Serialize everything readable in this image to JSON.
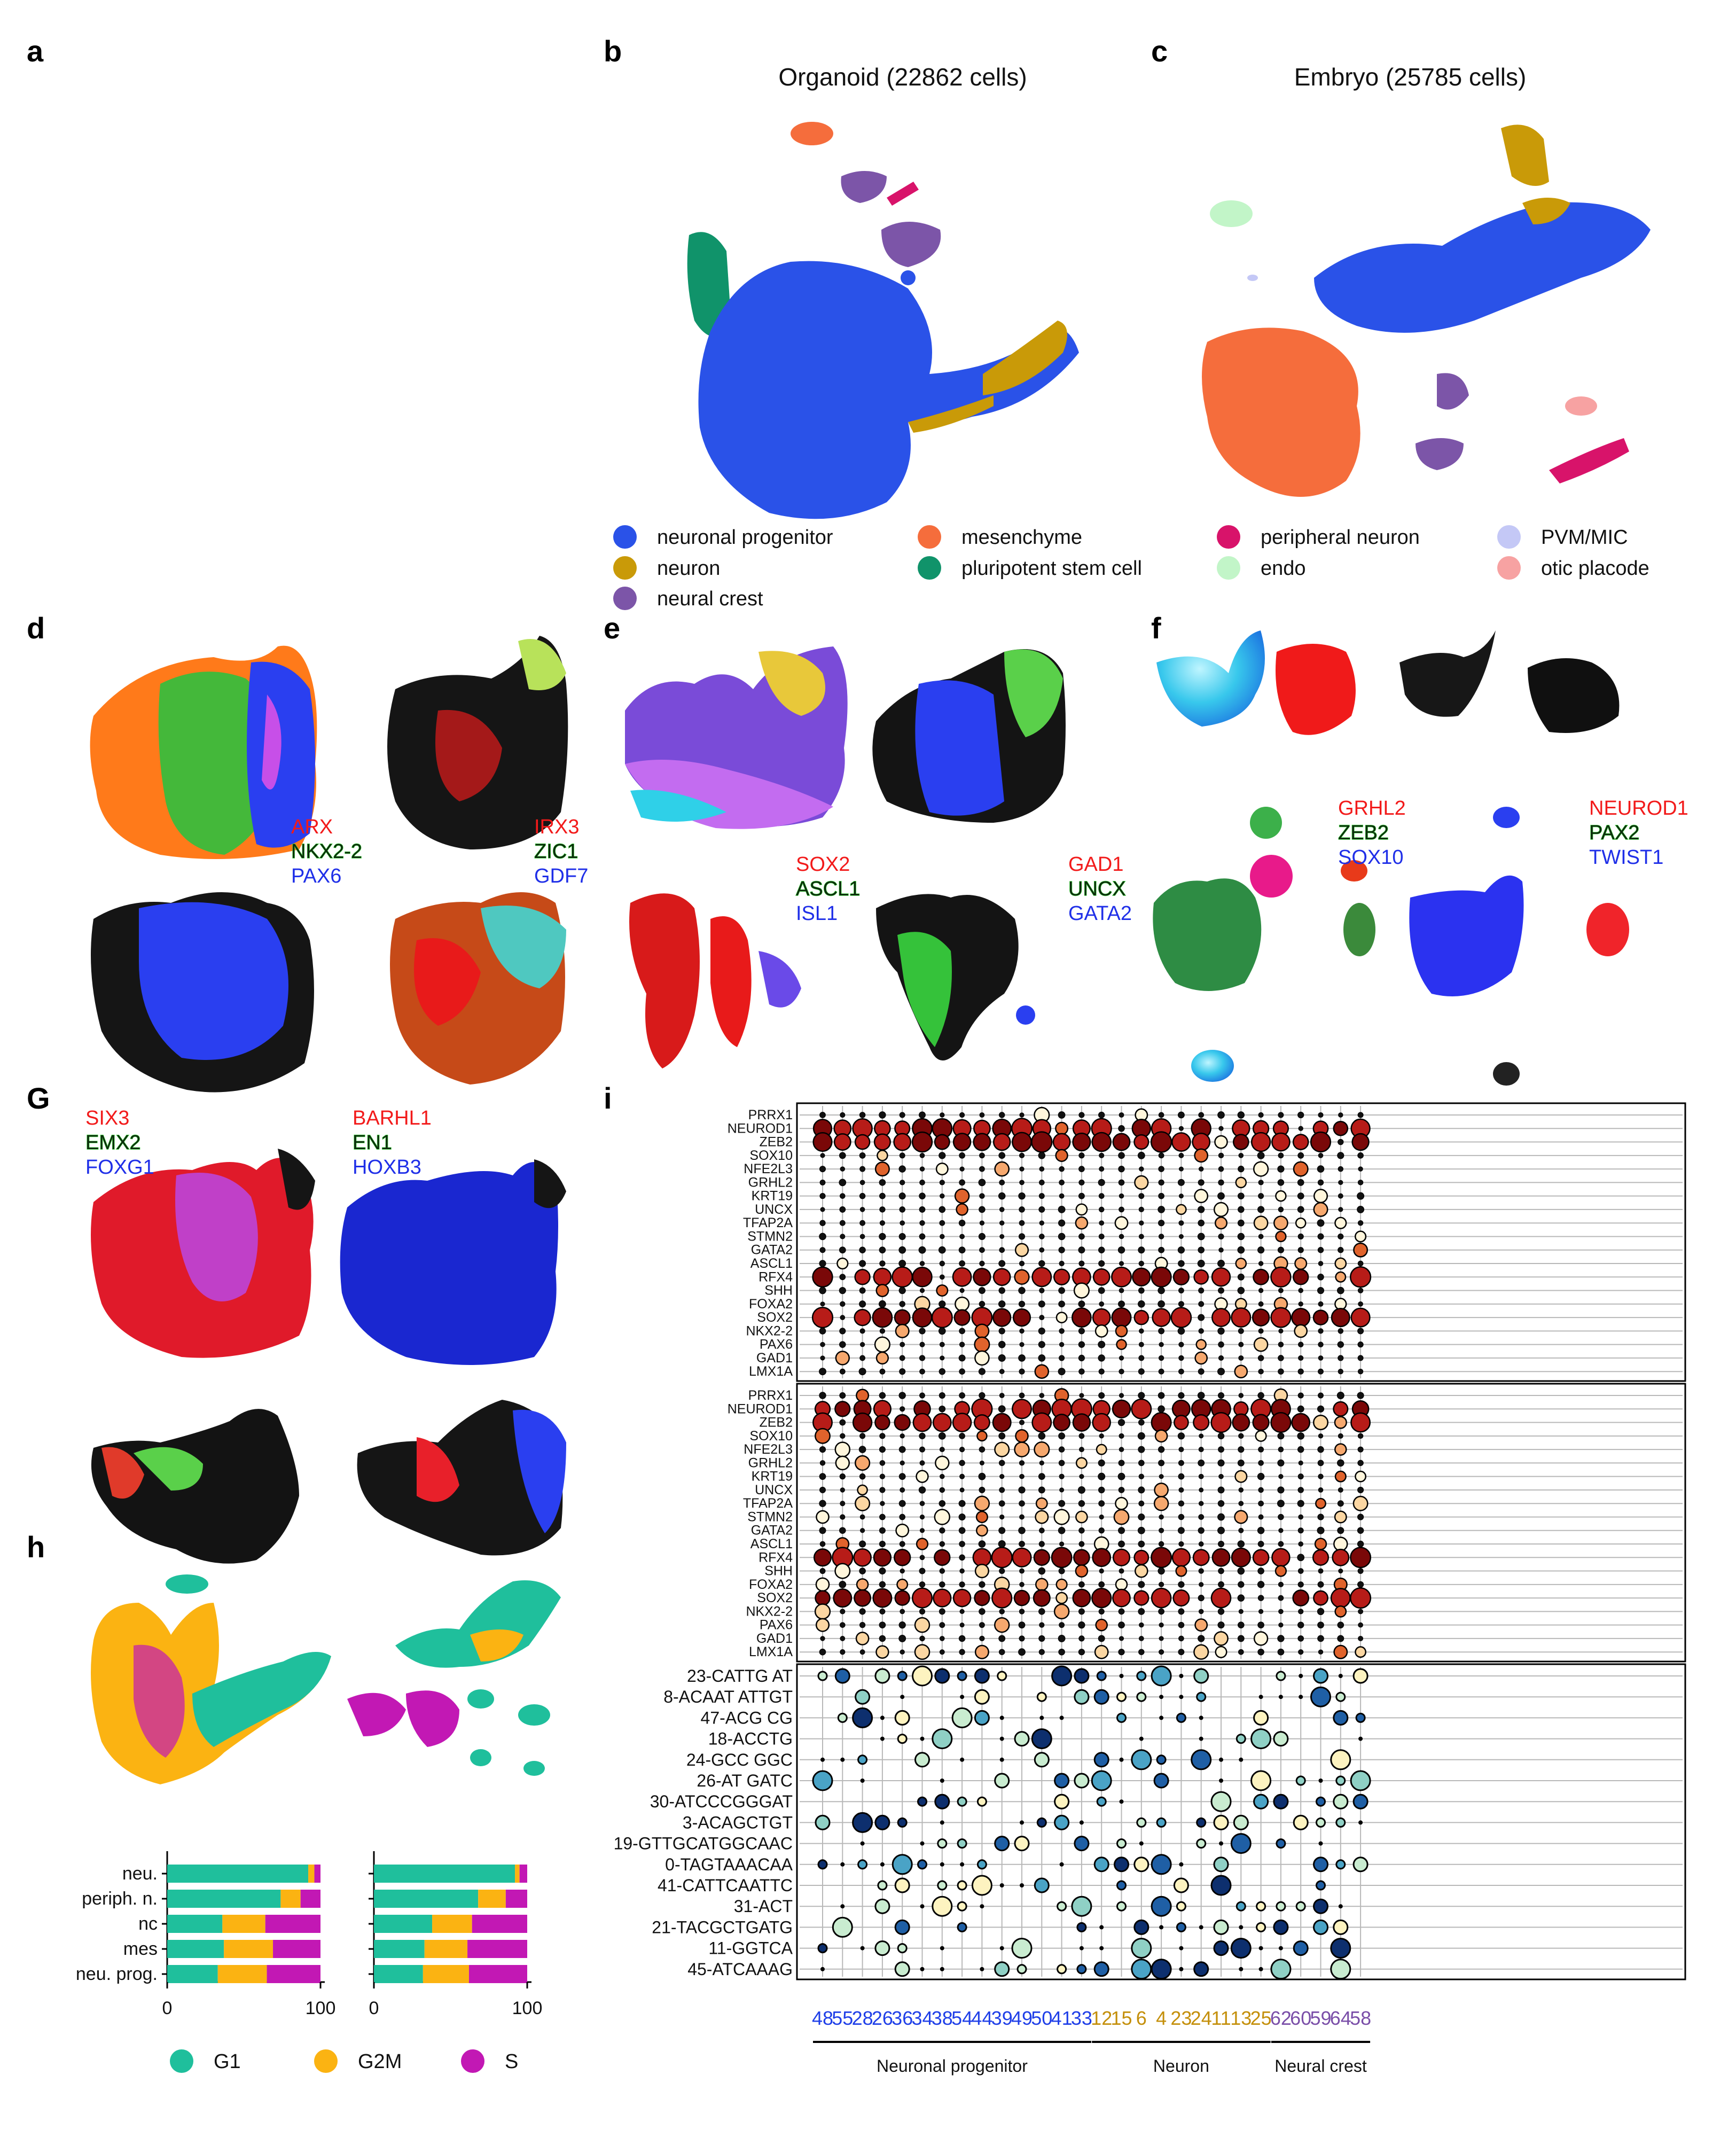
{
  "panels": {
    "a": "a",
    "b": "b",
    "c": "c",
    "d": "d",
    "e": "e",
    "f": "f",
    "g": "G",
    "h": "h",
    "i": "i"
  },
  "titles": {
    "organoid": "Organoid (22862 cells)",
    "embryo": "Embryo (25785 cells)"
  },
  "legend": [
    {
      "label": "neuronal progenitor",
      "color": "#2a52e8"
    },
    {
      "label": "neuron",
      "color": "#c99a08"
    },
    {
      "label": "neural crest",
      "color": "#7c55a8"
    },
    {
      "label": "mesenchyme",
      "color": "#f56d3c"
    },
    {
      "label": "pluripotent stem cell",
      "color": "#10936a"
    },
    {
      "label": "peripheral neuron",
      "color": "#d8136a"
    },
    {
      "label": "endo",
      "color": "#c2f5c8"
    },
    {
      "label": "PVM/MIC",
      "color": "#c4c8f6"
    },
    {
      "label": "otic placode",
      "color": "#f7a2a2"
    }
  ],
  "gene_triplets": {
    "d1": [
      "ARX",
      "NKX2-2",
      "PAX6"
    ],
    "d2": [
      "IRX3",
      "ZIC1",
      "GDF7"
    ],
    "e1": [
      "SOX2",
      "ASCL1",
      "ISL1"
    ],
    "e2": [
      "GAD1",
      "UNCX",
      "GATA2"
    ],
    "f1": [
      "GRHL2",
      "ZEB2",
      "SOX10"
    ],
    "f2": [
      "NEUROD1",
      "PAX2",
      "TWIST1"
    ],
    "g1": [
      "SIX3",
      "EMX2",
      "FOXG1"
    ],
    "g2": [
      "BARHL1",
      "EN1",
      "HOXB3"
    ]
  },
  "colors": {
    "red": "#f21a1a",
    "green_text": "#0e2a0e",
    "blue": "#1f2fe8",
    "dot_outline": "#222222"
  },
  "cell_cycle": {
    "categories": [
      "neu.",
      "periph. n.",
      "nc",
      "mes",
      "neu. prog."
    ],
    "legend": [
      {
        "label": "G1",
        "color": "#1fbf9c"
      },
      {
        "label": "G2M",
        "color": "#fbb312"
      },
      {
        "label": "S",
        "color": "#c218b4"
      }
    ],
    "ticks": [
      "0",
      "100"
    ]
  },
  "chart_data": [
    {
      "type": "bar",
      "title": "",
      "categories": [
        "neu.",
        "periph. n.",
        "nc",
        "mes",
        "neu. prog."
      ],
      "series": [
        {
          "name": "G1",
          "values": [
            92,
            74,
            36,
            37,
            33
          ]
        },
        {
          "name": "G2M",
          "values": [
            4,
            13,
            28,
            32,
            32
          ]
        },
        {
          "name": "S",
          "values": [
            4,
            13,
            36,
            31,
            35
          ]
        }
      ],
      "xlim": [
        0,
        100
      ]
    },
    {
      "type": "bar",
      "title": "",
      "categories": [
        "neu.",
        "periph. n.",
        "nc",
        "mes",
        "neu. prog."
      ],
      "series": [
        {
          "name": "G1",
          "values": [
            92,
            68,
            38,
            33,
            32
          ]
        },
        {
          "name": "G2M",
          "values": [
            3,
            18,
            26,
            28,
            30
          ]
        },
        {
          "name": "S",
          "values": [
            5,
            14,
            36,
            39,
            38
          ]
        }
      ],
      "xlim": [
        0,
        100
      ]
    },
    {
      "type": "scatter",
      "title": "",
      "x_categories": [
        "48",
        "55",
        "28",
        "26",
        "36",
        "34",
        "38",
        "54",
        "44",
        "39",
        "49",
        "50",
        "41",
        "33",
        "12",
        "15",
        "6",
        "4",
        "23",
        "24",
        "11",
        "13",
        "25",
        "62",
        "60",
        "59",
        "64",
        "58"
      ],
      "groups": [
        {
          "label": "Neuronal progenitor",
          "count": 14,
          "color": "#1f3fe8"
        },
        {
          "label": "Neuron",
          "count": 9,
          "color": "#c48f0a"
        },
        {
          "label": "Neural crest",
          "count": 5,
          "color": "#7a4ea8"
        }
      ],
      "genes": [
        "PRRX1",
        "NEUROD1",
        "ZEB2",
        "SOX10",
        "NFE2L3",
        "GRHL2",
        "KRT19",
        "UNCX",
        "TFAP2A",
        "STMN2",
        "GATA2",
        "ASCL1",
        "RFX4",
        "SHH",
        "FOXA2",
        "SOX2",
        "NKX2-2",
        "PAX6",
        "GAD1",
        "LMX1A"
      ],
      "motifs": [
        "23-CATTG AT",
        "8-ACAAT ATTGT",
        "47-ACG CG",
        "18-ACCTG",
        "24-GCC GGC",
        "26-AT GATC",
        "30-ATCCCGGGAT",
        "3-ACAGCTGT",
        "19-GTTGCATGGCAAC",
        "0-TAGTAAACAA",
        "41-CATTCAATTC",
        "31-ACT",
        "21-TACGCTGATG",
        "11-GGTCA",
        "45-ATCAAAG"
      ]
    }
  ]
}
